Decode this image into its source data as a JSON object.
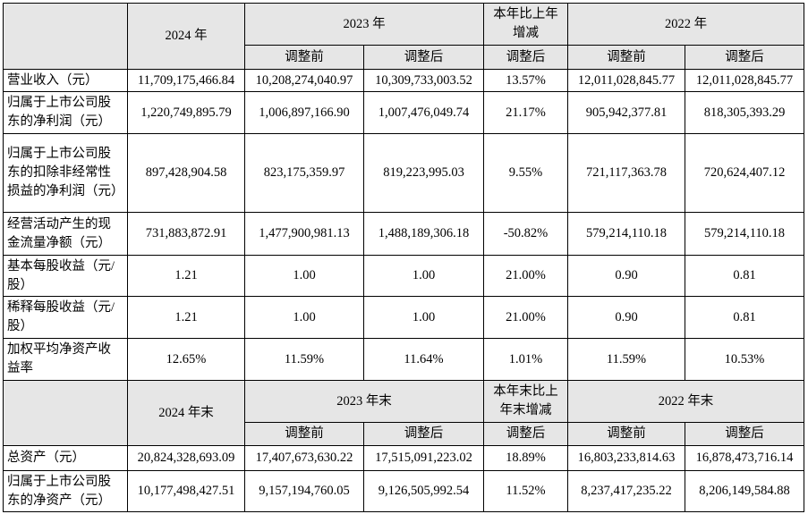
{
  "table": {
    "header": {
      "col1": "2024 年",
      "col2": "2023 年",
      "col3": "本年比上年增减",
      "col4": "2022 年",
      "sub": [
        "调整前",
        "调整后",
        "调整后",
        "调整前",
        "调整后"
      ]
    },
    "rows": [
      [
        "营业收入（元）",
        "11,709,175,466.84",
        "10,208,274,040.97",
        "10,309,733,003.52",
        "13.57%",
        "12,011,028,845.77",
        "12,011,028,845.77"
      ],
      [
        "归属于上市公司股东的净利润（元）",
        "1,220,749,895.79",
        "1,006,897,166.90",
        "1,007,476,049.74",
        "21.17%",
        "905,942,377.81",
        "818,305,393.29"
      ],
      [
        "归属于上市公司股东的扣除非经常性损益的净利润（元）",
        "897,428,904.58",
        "823,175,359.97",
        "819,223,995.03",
        "9.55%",
        "721,117,363.78",
        "720,624,407.12"
      ],
      [
        "经营活动产生的现金流量净额（元）",
        "731,883,872.91",
        "1,477,900,981.13",
        "1,488,189,306.18",
        "-50.82%",
        "579,214,110.18",
        "579,214,110.18"
      ],
      [
        "基本每股收益（元/股）",
        "1.21",
        "1.00",
        "1.00",
        "21.00%",
        "0.90",
        "0.81"
      ],
      [
        "稀释每股收益（元/股）",
        "1.21",
        "1.00",
        "1.00",
        "21.00%",
        "0.90",
        "0.81"
      ],
      [
        "加权平均净资产收益率",
        "12.65%",
        "11.59%",
        "11.64%",
        "1.01%",
        "11.59%",
        "10.53%"
      ]
    ],
    "header2": {
      "col1": "2024 年末",
      "col2": "2023 年末",
      "col3": "本年末比上年末增减",
      "col4": "2022 年末",
      "sub": [
        "调整前",
        "调整后",
        "调整后",
        "调整前",
        "调整后"
      ]
    },
    "rows2": [
      [
        "总资产（元）",
        "20,824,328,693.09",
        "17,407,673,630.22",
        "17,515,091,223.02",
        "18.89%",
        "16,803,233,814.63",
        "16,878,473,716.14"
      ],
      [
        "归属于上市公司股东的净资产（元）",
        "10,177,498,427.51",
        "9,157,194,760.05",
        "9,126,505,992.54",
        "11.52%",
        "8,237,417,235.22",
        "8,206,149,584.88"
      ]
    ]
  }
}
